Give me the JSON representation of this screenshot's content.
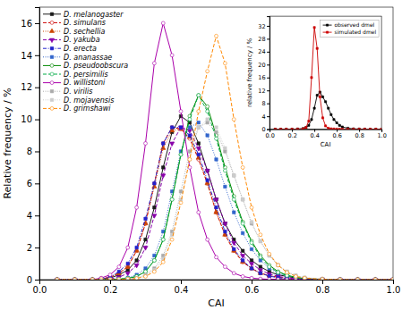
{
  "chart_data": [
    {
      "type": "line",
      "xlabel": "CAI",
      "ylabel": "Relative frequency / %",
      "xlim": [
        0.0,
        1.0
      ],
      "ylim": [
        0.0,
        17.0
      ],
      "xticks": [
        {
          "value": 0.0,
          "label": "0.0"
        },
        0.2,
        0.4,
        0.6,
        0.8,
        {
          "value": 1.0,
          "label": "1.0"
        }
      ],
      "yticks": [
        0,
        2,
        4,
        6,
        8,
        10,
        12,
        14,
        16
      ],
      "legend": "upper left",
      "x": [
        0.05,
        0.1,
        0.15,
        0.175,
        0.2,
        0.225,
        0.25,
        0.275,
        0.3,
        0.325,
        0.35,
        0.375,
        0.4,
        0.425,
        0.45,
        0.475,
        0.5,
        0.525,
        0.55,
        0.575,
        0.6,
        0.625,
        0.65,
        0.675,
        0.7,
        0.725,
        0.75,
        0.8,
        0.85,
        0.9,
        0.95,
        1.0
      ],
      "series": [
        {
          "name": "D. melanogaster",
          "color": "#1a1a1a",
          "line_style": "solid",
          "marker": "square",
          "values": [
            0,
            0,
            0,
            0.05,
            0.1,
            0.3,
            0.6,
            1.2,
            2.5,
            4.5,
            7.0,
            9.2,
            10.2,
            9.8,
            8.5,
            6.8,
            5.0,
            3.5,
            2.5,
            1.8,
            1.2,
            0.8,
            0.5,
            0.3,
            0.2,
            0.1,
            0.05,
            0.02,
            0.01,
            0,
            0,
            0
          ]
        },
        {
          "name": "D. simulans",
          "color": "#cc0000",
          "line_style": "dashed",
          "marker": "circle",
          "values": [
            0,
            0,
            0,
            0.05,
            0.15,
            0.4,
            0.8,
            1.8,
            3.5,
            6.0,
            8.5,
            9.5,
            9.4,
            8.8,
            7.5,
            6.0,
            4.2,
            2.8,
            1.8,
            1.1,
            0.7,
            0.4,
            0.25,
            0.15,
            0.08,
            0.04,
            0.02,
            0.01,
            0,
            0,
            0,
            0
          ]
        },
        {
          "name": "D. sechellia",
          "color": "#cc4400",
          "line_style": "dotted",
          "marker": "triangle-up",
          "values": [
            0,
            0,
            0,
            0.05,
            0.15,
            0.4,
            0.8,
            1.8,
            3.5,
            5.8,
            8.2,
            9.3,
            9.4,
            8.9,
            7.6,
            6.0,
            4.2,
            2.8,
            1.8,
            1.1,
            0.7,
            0.4,
            0.25,
            0.15,
            0.08,
            0.04,
            0.02,
            0.01,
            0,
            0,
            0,
            0
          ]
        },
        {
          "name": "D. yakuba",
          "color": "#8800aa",
          "line_style": "dashed",
          "marker": "triangle-down",
          "values": [
            0,
            0,
            0,
            0.02,
            0.05,
            0.15,
            0.4,
            0.9,
            2.0,
            4.0,
            6.5,
            8.5,
            9.5,
            9.3,
            8.2,
            6.8,
            5.0,
            3.5,
            2.3,
            1.5,
            1.0,
            0.6,
            0.35,
            0.2,
            0.12,
            0.06,
            0.03,
            0.01,
            0,
            0,
            0,
            0
          ]
        },
        {
          "name": "D. erecta",
          "color": "#2222cc",
          "line_style": "dashdot",
          "marker": "square",
          "values": [
            0,
            0,
            0,
            0.05,
            0.15,
            0.5,
            1.0,
            2.0,
            3.8,
            6.0,
            8.5,
            9.5,
            9.5,
            9.0,
            7.8,
            6.2,
            4.5,
            3.0,
            1.9,
            1.2,
            0.7,
            0.4,
            0.22,
            0.12,
            0.06,
            0.03,
            0.01,
            0,
            0,
            0,
            0,
            0
          ]
        },
        {
          "name": "D. ananassae",
          "color": "#3366cc",
          "line_style": "dotted",
          "marker": "square",
          "values": [
            0,
            0,
            0,
            0,
            0.02,
            0.05,
            0.12,
            0.3,
            0.7,
            1.5,
            3.0,
            5.5,
            8.0,
            9.5,
            9.8,
            9.0,
            7.5,
            5.8,
            4.2,
            2.9,
            1.9,
            1.2,
            0.7,
            0.4,
            0.22,
            0.12,
            0.06,
            0.02,
            0.01,
            0,
            0,
            0
          ]
        },
        {
          "name": "D. pseudoobscura",
          "color": "#008800",
          "line_style": "solid",
          "marker": "circle",
          "values": [
            0,
            0,
            0,
            0,
            0.01,
            0.03,
            0.08,
            0.2,
            0.5,
            1.2,
            2.5,
            5.0,
            7.8,
            10.2,
            11.5,
            10.8,
            9.0,
            7.0,
            5.2,
            3.6,
            2.4,
            1.5,
            0.9,
            0.5,
            0.28,
            0.14,
            0.07,
            0.02,
            0,
            0,
            0,
            0
          ]
        },
        {
          "name": "D. persimilis",
          "color": "#00aa44",
          "line_style": "dashed",
          "marker": "circle",
          "values": [
            0,
            0,
            0,
            0,
            0.01,
            0.03,
            0.08,
            0.2,
            0.5,
            1.2,
            2.5,
            5.0,
            7.8,
            10.0,
            11.5,
            10.5,
            8.8,
            6.8,
            5.0,
            3.5,
            2.3,
            1.4,
            0.8,
            0.45,
            0.25,
            0.13,
            0.06,
            0.02,
            0,
            0,
            0,
            0
          ]
        },
        {
          "name": "D. willistoni",
          "color": "#aa00aa",
          "line_style": "solid",
          "marker": "circle",
          "values": [
            0,
            0,
            0,
            0.1,
            0.3,
            0.8,
            2.0,
            4.5,
            8.5,
            13.5,
            16.0,
            14.0,
            10.5,
            7.0,
            4.2,
            2.5,
            1.4,
            0.8,
            0.4,
            0.2,
            0.1,
            0.05,
            0.02,
            0.01,
            0,
            0,
            0,
            0,
            0,
            0,
            0,
            0
          ]
        },
        {
          "name": "D. virilis",
          "color": "#aaaaaa",
          "line_style": "dotted",
          "marker": "square",
          "values": [
            0,
            0,
            0,
            0,
            0,
            0.01,
            0.04,
            0.1,
            0.3,
            0.7,
            1.5,
            3.0,
            5.5,
            8.0,
            9.5,
            9.8,
            9.2,
            8.0,
            6.5,
            5.0,
            3.5,
            2.4,
            1.5,
            0.9,
            0.5,
            0.25,
            0.12,
            0.03,
            0.01,
            0,
            0,
            0
          ]
        },
        {
          "name": "D. mojavensis",
          "color": "#cccccc",
          "line_style": "dotted",
          "marker": "square",
          "values": [
            0,
            0,
            0,
            0,
            0,
            0.01,
            0.03,
            0.08,
            0.25,
            0.6,
            1.3,
            2.8,
            5.0,
            7.5,
            9.5,
            10.0,
            9.5,
            8.2,
            6.5,
            5.0,
            3.6,
            2.4,
            1.5,
            0.9,
            0.5,
            0.25,
            0.12,
            0.03,
            0.01,
            0,
            0,
            0
          ]
        },
        {
          "name": "D. grimshawi",
          "color": "#ff8800",
          "line_style": "dashed",
          "marker": "circle",
          "values": [
            0,
            0,
            0,
            0,
            0,
            0.01,
            0.03,
            0.08,
            0.2,
            0.5,
            1.1,
            2.5,
            4.8,
            7.5,
            10.5,
            13.0,
            15.2,
            13.5,
            10.0,
            7.0,
            4.5,
            2.8,
            1.6,
            0.9,
            0.45,
            0.2,
            0.1,
            0.02,
            0,
            0,
            0,
            0
          ]
        }
      ]
    },
    {
      "type": "line",
      "xlabel": "CAI",
      "ylabel": "relative frequency / %",
      "xlim": [
        0.0,
        1.0
      ],
      "ylim": [
        0,
        35
      ],
      "xticks": [
        {
          "value": 0.0,
          "label": "0.0"
        },
        0.2,
        0.4,
        0.6,
        0.8,
        {
          "value": 1.0,
          "label": "1.0"
        }
      ],
      "yticks": [
        0,
        4,
        8,
        12,
        16,
        20,
        24,
        28,
        32
      ],
      "legend": "upper right",
      "x": [
        0.05,
        0.1,
        0.15,
        0.2,
        0.25,
        0.3,
        0.325,
        0.35,
        0.375,
        0.4,
        0.425,
        0.45,
        0.475,
        0.5,
        0.525,
        0.55,
        0.575,
        0.6,
        0.625,
        0.65,
        0.7,
        0.75,
        0.8,
        0.85,
        0.9,
        0.95,
        1.0
      ],
      "series": [
        {
          "name": "observed dmel",
          "color": "#000000",
          "line_style": "solid",
          "marker": "square",
          "values": [
            0,
            0,
            0,
            0,
            0.05,
            0.2,
            0.5,
            1.2,
            3.0,
            6.5,
            10.5,
            11.5,
            10.0,
            8.5,
            6.5,
            4.5,
            3.0,
            2.0,
            1.2,
            0.7,
            0.3,
            0.1,
            0.05,
            0.02,
            0,
            0,
            0
          ]
        },
        {
          "name": "simulated dmel",
          "color": "#cc0000",
          "line_style": "solid",
          "marker": "square",
          "values": [
            0,
            0,
            0,
            0,
            0.02,
            0.1,
            0.5,
            2.5,
            16.0,
            31.5,
            25.0,
            10.0,
            3.5,
            1.0,
            0.3,
            0.1,
            0.05,
            0.02,
            0,
            0,
            0,
            0,
            0,
            0,
            0,
            0,
            0
          ]
        }
      ]
    }
  ]
}
